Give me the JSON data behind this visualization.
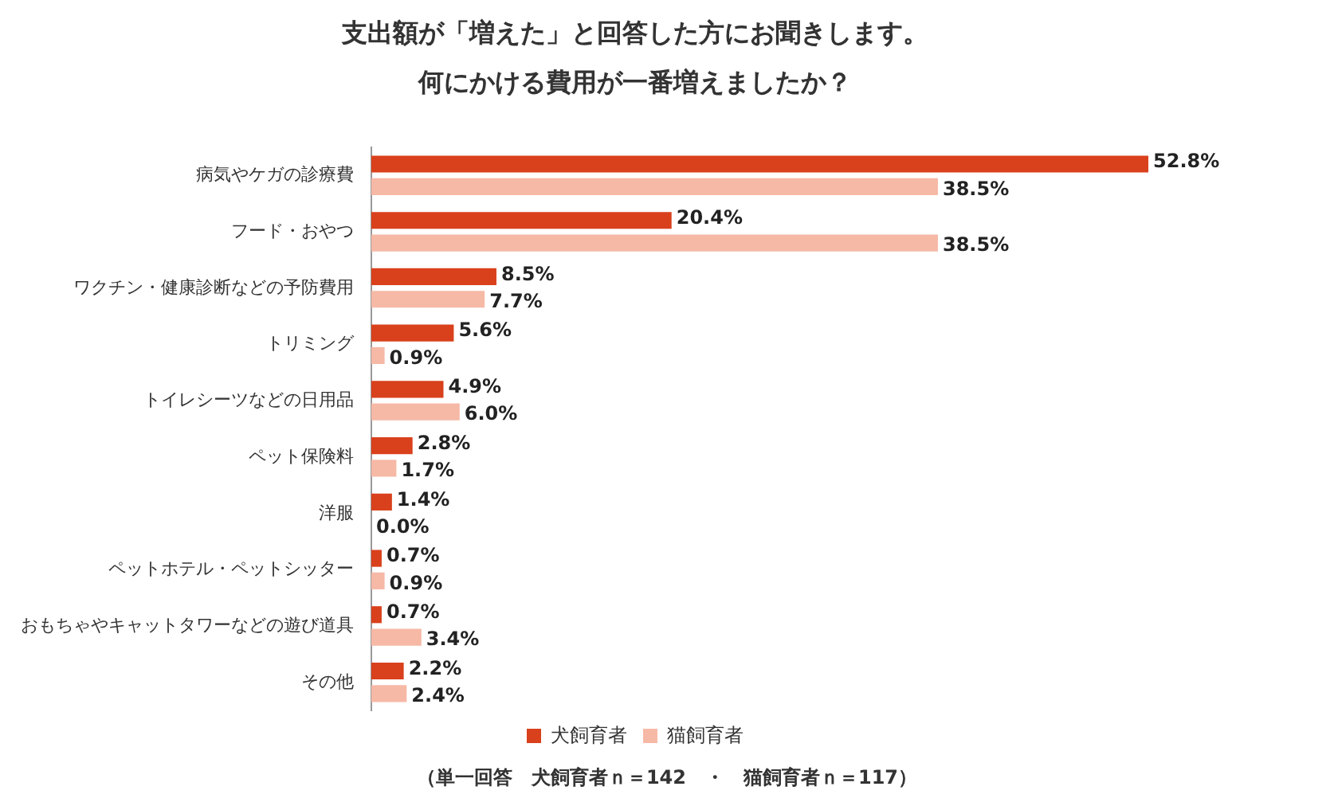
{
  "chart_data": {
    "type": "bar",
    "orientation": "horizontal",
    "title": "支出額が「増えた」と回答した方にお聞きします。",
    "subtitle": "何にかける費用が一番増えましたか？",
    "categories": [
      "病気やケガの診療費",
      "フード・おやつ",
      "ワクチン・健康診断などの予防費用",
      "トリミング",
      "トイレシーツなどの日用品",
      "ペット保険料",
      "洋服",
      "ペットホテル・ペットシッター",
      "おもちゃやキャットタワーなどの遊び道具",
      "その他"
    ],
    "series": [
      {
        "name": "犬飼育者",
        "color": "#d9401c",
        "values": [
          52.8,
          20.4,
          8.5,
          5.6,
          4.9,
          2.8,
          1.4,
          0.7,
          0.7,
          2.2
        ],
        "value_labels": [
          "52.8%",
          "20.4%",
          "8.5%",
          "5.6%",
          "4.9%",
          "2.8%",
          "1.4%",
          "0.7%",
          "0.7%",
          "2.2%"
        ]
      },
      {
        "name": "猫飼育者",
        "color": "#f6b9a6",
        "values": [
          38.5,
          38.5,
          7.7,
          0.9,
          6.0,
          1.7,
          0.0,
          0.9,
          3.4,
          2.4
        ],
        "value_labels": [
          "38.5%",
          "38.5%",
          "7.7%",
          "0.9%",
          "6.0%",
          "1.7%",
          "0.0%",
          "0.9%",
          "3.4%",
          "2.4%"
        ]
      }
    ],
    "legend": "bottom",
    "grid": false,
    "annotations": [
      "（単一回答　犬飼育者ｎ＝142　・　猫飼育者ｎ＝117）"
    ]
  }
}
